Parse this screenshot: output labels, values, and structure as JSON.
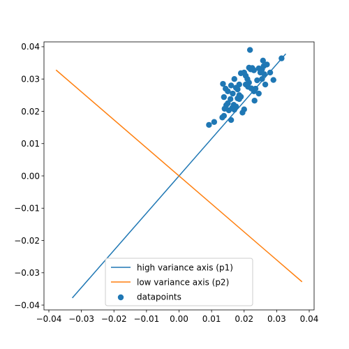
{
  "chart_data": {
    "type": "scatter",
    "title": "",
    "xlabel": "",
    "ylabel": "",
    "xlim": [
      -0.0415,
      0.0415
    ],
    "ylim": [
      -0.0415,
      0.0415
    ],
    "xticks": [
      -0.04,
      -0.03,
      -0.02,
      -0.01,
      0.0,
      0.01,
      0.02,
      0.03,
      0.04
    ],
    "xtick_labels": [
      "−0.04",
      "−0.03",
      "−0.02",
      "−0.01",
      "0.00",
      "0.01",
      "0.02",
      "0.03",
      "0.04"
    ],
    "yticks": [
      -0.04,
      -0.03,
      -0.02,
      -0.01,
      0.0,
      0.01,
      0.02,
      0.03,
      0.04
    ],
    "ytick_labels": [
      "−0.04",
      "−0.03",
      "−0.02",
      "−0.01",
      "0.00",
      "0.01",
      "0.02",
      "0.03",
      "0.04"
    ],
    "grid": false,
    "legend_position": "lower-center",
    "series": [
      {
        "name": "high variance axis (p1)",
        "kind": "line",
        "color": "#1f77b4",
        "x": [
          -0.0328,
          0.0328
        ],
        "y": [
          -0.0378,
          0.0378
        ]
      },
      {
        "name": "low variance axis (p2)",
        "kind": "line",
        "color": "#ff7f0e",
        "x": [
          -0.0378,
          0.0378
        ],
        "y": [
          0.0328,
          -0.0328
        ]
      },
      {
        "name": "datapoints",
        "kind": "scatter",
        "color": "#1f77b4",
        "points": [
          [
            0.0092,
            0.0158
          ],
          [
            0.0108,
            0.0167
          ],
          [
            0.0133,
            0.0181
          ],
          [
            0.0138,
            0.0186
          ],
          [
            0.016,
            0.0173
          ],
          [
            0.014,
            0.0208
          ],
          [
            0.0145,
            0.0219
          ],
          [
            0.015,
            0.0225
          ],
          [
            0.0153,
            0.0203
          ],
          [
            0.0158,
            0.0238
          ],
          [
            0.0163,
            0.021
          ],
          [
            0.0168,
            0.022
          ],
          [
            0.017,
            0.0205
          ],
          [
            0.0175,
            0.0215
          ],
          [
            0.018,
            0.024
          ],
          [
            0.0185,
            0.025
          ],
          [
            0.019,
            0.0245
          ],
          [
            0.0195,
            0.0196
          ],
          [
            0.02,
            0.0206
          ],
          [
            0.0138,
            0.0244
          ],
          [
            0.0135,
            0.0285
          ],
          [
            0.0143,
            0.027
          ],
          [
            0.016,
            0.028
          ],
          [
            0.0165,
            0.0255
          ],
          [
            0.017,
            0.03
          ],
          [
            0.0175,
            0.0273
          ],
          [
            0.018,
            0.0268
          ],
          [
            0.0185,
            0.0283
          ],
          [
            0.019,
            0.0318
          ],
          [
            0.02,
            0.032
          ],
          [
            0.0205,
            0.031
          ],
          [
            0.021,
            0.03
          ],
          [
            0.0215,
            0.0289
          ],
          [
            0.022,
            0.033
          ],
          [
            0.0215,
            0.0335
          ],
          [
            0.0225,
            0.0334
          ],
          [
            0.023,
            0.0327
          ],
          [
            0.0235,
            0.027
          ],
          [
            0.023,
            0.0262
          ],
          [
            0.024,
            0.0296
          ],
          [
            0.0245,
            0.0255
          ],
          [
            0.025,
            0.032
          ],
          [
            0.0255,
            0.033
          ],
          [
            0.0258,
            0.0357
          ],
          [
            0.026,
            0.034
          ],
          [
            0.0262,
            0.0315
          ],
          [
            0.0265,
            0.0283
          ],
          [
            0.027,
            0.0345
          ],
          [
            0.028,
            0.032
          ],
          [
            0.029,
            0.0297
          ],
          [
            0.0315,
            0.0364
          ],
          [
            0.0218,
            0.039
          ],
          [
            0.0232,
            0.0233
          ],
          [
            0.0222,
            0.0271
          ],
          [
            0.0212,
            0.0276
          ],
          [
            0.0245,
            0.0333
          ],
          [
            0.0255,
            0.03
          ],
          [
            0.0205,
            0.0283
          ],
          [
            0.0185,
            0.0238
          ],
          [
            0.015,
            0.0262
          ]
        ]
      }
    ]
  }
}
